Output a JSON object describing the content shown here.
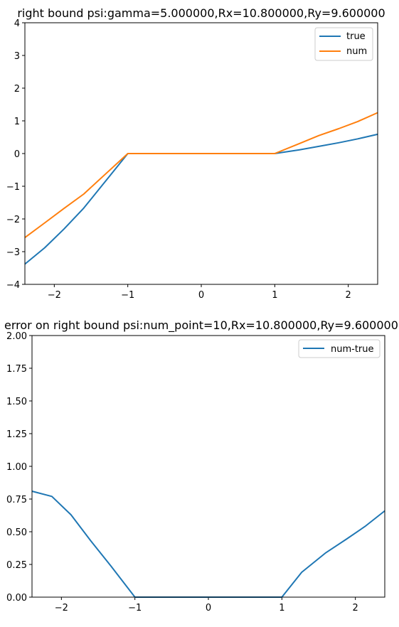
{
  "chart_data": [
    {
      "type": "line",
      "title": "right bound psi:gamma=5.000000,Rx=10.800000,Ry=9.600000",
      "xlim": [
        -2.4,
        2.4
      ],
      "ylim": [
        -4,
        4
      ],
      "xticks": [
        "−2",
        "−1",
        "0",
        "1",
        "2"
      ],
      "xtick_values": [
        -2,
        -1,
        0,
        1,
        2
      ],
      "yticks": [
        "−4",
        "−3",
        "−2",
        "−1",
        "0",
        "1",
        "2",
        "3",
        "4"
      ],
      "ytick_values": [
        -4,
        -3,
        -2,
        -1,
        0,
        1,
        2,
        3,
        4
      ],
      "legend_position": "top-right",
      "series": [
        {
          "name": "true",
          "color": "#1f77b4",
          "x": [
            -2.4,
            -2.13,
            -1.87,
            -1.6,
            -1.33,
            -1.0,
            1.0,
            1.33,
            1.6,
            1.87,
            2.13,
            2.4
          ],
          "y": [
            -3.38,
            -2.88,
            -2.31,
            -1.67,
            -0.92,
            0.0,
            0.0,
            0.11,
            0.22,
            0.33,
            0.45,
            0.59
          ]
        },
        {
          "name": "num",
          "color": "#ff7f0e",
          "x": [
            -2.4,
            -2.13,
            -1.87,
            -1.6,
            -1.33,
            -1.0,
            1.0,
            1.33,
            1.6,
            1.87,
            2.13,
            2.4
          ],
          "y": [
            -2.57,
            -2.12,
            -1.68,
            -1.24,
            -0.68,
            0.0,
            0.0,
            0.3,
            0.55,
            0.76,
            0.98,
            1.25
          ]
        }
      ]
    },
    {
      "type": "line",
      "title": "error on right bound psi:num_point=10,Rx=10.800000,Ry=9.600000",
      "xlim": [
        -2.4,
        2.4
      ],
      "ylim": [
        0,
        2
      ],
      "xticks": [
        "−2",
        "−1",
        "0",
        "1",
        "2"
      ],
      "xtick_values": [
        -2,
        -1,
        0,
        1,
        2
      ],
      "yticks": [
        "0.00",
        "0.25",
        "0.50",
        "0.75",
        "1.00",
        "1.25",
        "1.50",
        "1.75",
        "2.00"
      ],
      "ytick_values": [
        0,
        0.25,
        0.5,
        0.75,
        1.0,
        1.25,
        1.5,
        1.75,
        2.0
      ],
      "legend_position": "top-right",
      "series": [
        {
          "name": "num-true",
          "color": "#1f77b4",
          "x": [
            -2.4,
            -2.13,
            -1.87,
            -1.6,
            -1.33,
            -1.0,
            1.0,
            1.27,
            1.6,
            1.87,
            2.13,
            2.4
          ],
          "y": [
            0.81,
            0.77,
            0.63,
            0.43,
            0.24,
            0.0,
            0.0,
            0.19,
            0.34,
            0.44,
            0.54,
            0.66
          ]
        }
      ]
    }
  ]
}
